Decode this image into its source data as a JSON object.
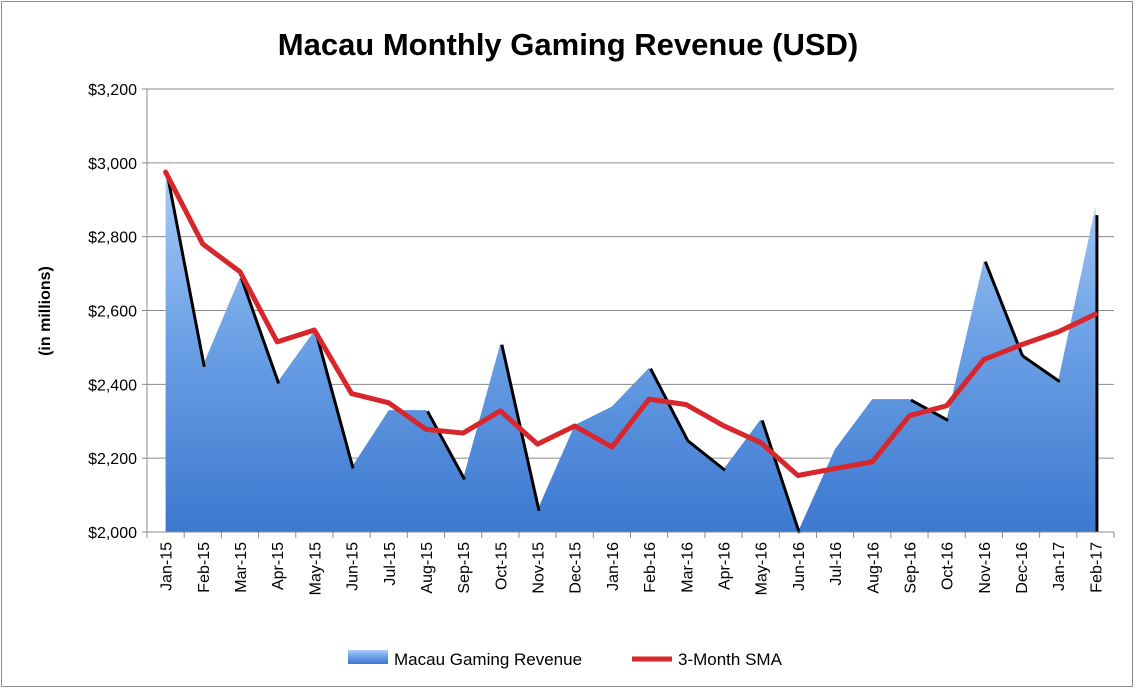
{
  "chart_data": {
    "type": "area",
    "title": "Macau Monthly Gaming Revenue (USD)",
    "ylabel": "(in millions)",
    "xlabel": "",
    "ylim": [
      2000,
      3200
    ],
    "yticks": [
      2000,
      2200,
      2400,
      2600,
      2800,
      3000,
      3200
    ],
    "ytick_labels": [
      "$2,000",
      "$2,200",
      "$2,400",
      "$2,600",
      "$2,800",
      "$3,000",
      "$3,200"
    ],
    "grid": true,
    "legend_position": "bottom",
    "categories": [
      "Jan-15",
      "Feb-15",
      "Mar-15",
      "Apr-15",
      "May-15",
      "Jun-15",
      "Jul-15",
      "Aug-15",
      "Sep-15",
      "Oct-15",
      "Nov-15",
      "Dec-15",
      "Jan-16",
      "Feb-16",
      "Mar-16",
      "Apr-16",
      "May-16",
      "Jun-16",
      "Jul-16",
      "Aug-16",
      "Sep-16",
      "Oct-16",
      "Nov-16",
      "Dec-16",
      "Jan-17",
      "Feb-17"
    ],
    "series": [
      {
        "name": "Macau Gaming Revenue",
        "type": "area",
        "color": "#4a86d6",
        "values": [
          2975,
          2450,
          2690,
          2405,
          2545,
          2175,
          2330,
          2330,
          2145,
          2510,
          2060,
          2290,
          2340,
          2445,
          2250,
          2170,
          2305,
          1985,
          2225,
          2360,
          2360,
          2305,
          2735,
          2480,
          2410,
          2880
        ]
      },
      {
        "name": "3-Month SMA",
        "type": "line",
        "color": "#d8262d",
        "values": [
          2975,
          2780,
          2705,
          2515,
          2547,
          2375,
          2350,
          2278,
          2268,
          2328,
          2238,
          2287,
          2230,
          2360,
          2345,
          2288,
          2242,
          2153,
          2172,
          2190,
          2315,
          2342,
          2467,
          2507,
          2542,
          2590
        ]
      }
    ]
  }
}
